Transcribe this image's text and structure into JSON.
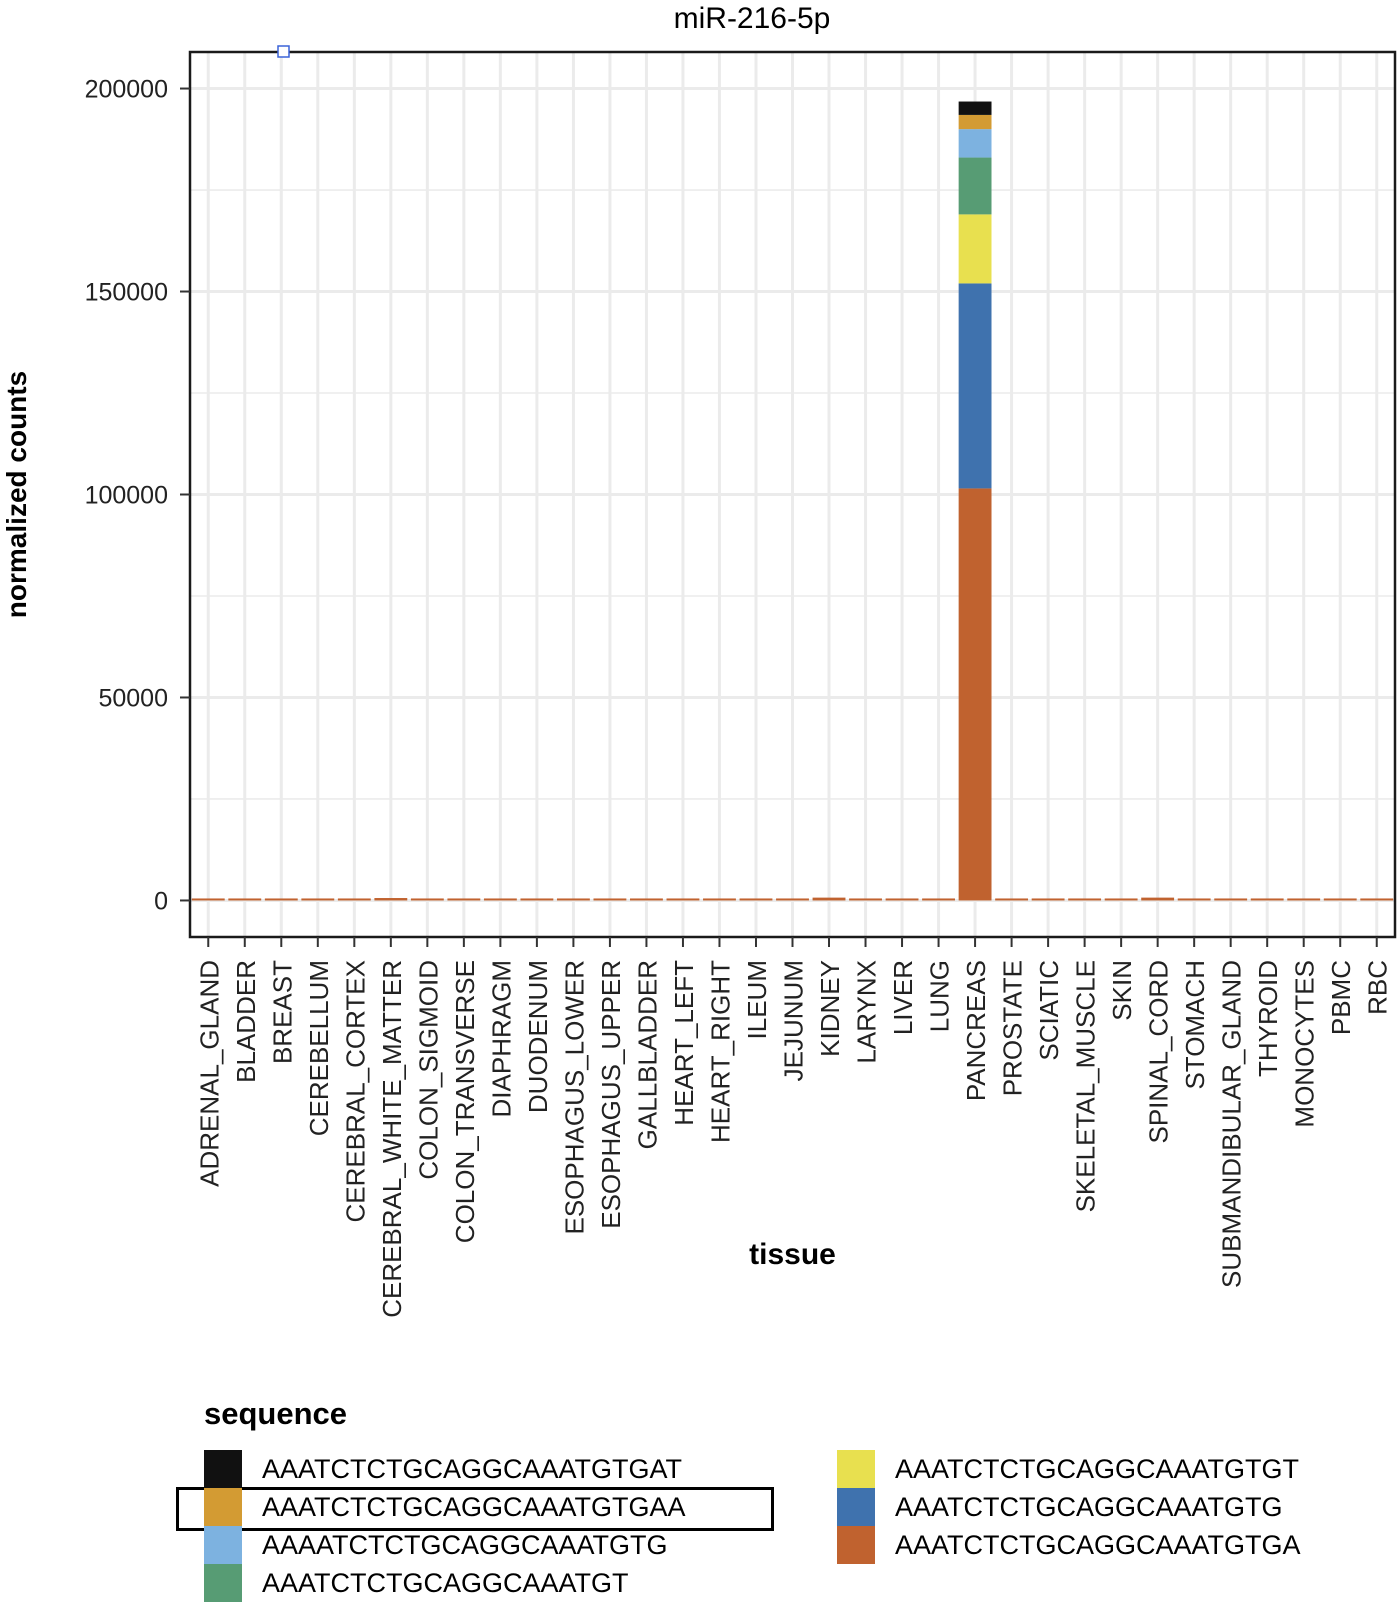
{
  "chart_data": {
    "type": "bar",
    "stacked": true,
    "title": "miR-216-5p",
    "xlabel": "tissue",
    "ylabel": "normalized counts",
    "ylim": [
      -9000,
      209000
    ],
    "yticks": [
      0,
      50000,
      100000,
      150000,
      200000
    ],
    "ytick_labels": [
      "0",
      "50000",
      "100000",
      "150000",
      "200000"
    ],
    "grid": true,
    "categories": [
      "ADRENAL_GLAND",
      "BLADDER",
      "BREAST",
      "CEREBELLUM",
      "CEREBRAL_CORTEX",
      "CEREBRAL_WHITE_MATTER",
      "COLON_SIGMOID",
      "COLON_TRANSVERSE",
      "DIAPHRAGM",
      "DUODENUM",
      "ESOPHAGUS_LOWER",
      "ESOPHAGUS_UPPER",
      "GALLBLADDER",
      "HEART_LEFT",
      "HEART_RIGHT",
      "ILEUM",
      "JEJUNUM",
      "KIDNEY",
      "LARYNX",
      "LIVER",
      "LUNG",
      "PANCREAS",
      "PROSTATE",
      "SCIATIC",
      "SKELETAL_MUSCLE",
      "SKIN",
      "SPINAL_CORD",
      "STOMACH",
      "SUBMANDIBULAR_GLAND",
      "THYROID",
      "MONOCYTES",
      "PBMC",
      "RBC"
    ],
    "legend_title": "sequence",
    "series": [
      {
        "name": "AAATCTCTGCAGGCAAATGTGA",
        "color": "#c0622f",
        "values": [
          300,
          250,
          300,
          300,
          250,
          600,
          300,
          450,
          250,
          350,
          250,
          300,
          350,
          300,
          250,
          250,
          350,
          700,
          250,
          450,
          250,
          101500,
          250,
          250,
          350,
          250,
          700,
          350,
          300,
          300,
          100,
          150,
          100
        ]
      },
      {
        "name": "AAATCTCTGCAGGCAAATGTG",
        "color": "#3f72ae",
        "values": [
          0,
          0,
          0,
          0,
          0,
          0,
          0,
          0,
          0,
          0,
          0,
          0,
          0,
          0,
          0,
          0,
          0,
          0,
          0,
          0,
          0,
          50500,
          0,
          0,
          0,
          0,
          0,
          0,
          0,
          0,
          0,
          0,
          0
        ]
      },
      {
        "name": "AAATCTCTGCAGGCAAATGTGT",
        "color": "#e8e04f",
        "values": [
          0,
          0,
          0,
          0,
          0,
          0,
          0,
          0,
          0,
          0,
          0,
          0,
          0,
          0,
          0,
          0,
          0,
          0,
          0,
          0,
          0,
          17000,
          0,
          0,
          0,
          0,
          0,
          0,
          0,
          0,
          0,
          0,
          0
        ]
      },
      {
        "name": "AAATCTCTGCAGGCAAATGT",
        "color": "#579c74",
        "values": [
          0,
          0,
          0,
          0,
          0,
          0,
          0,
          0,
          0,
          0,
          0,
          0,
          0,
          0,
          0,
          0,
          0,
          0,
          0,
          0,
          0,
          14000,
          0,
          0,
          0,
          0,
          0,
          0,
          0,
          0,
          0,
          0,
          0
        ]
      },
      {
        "name": "AAAATCTCTGCAGGCAAATGTG",
        "color": "#7db2e0",
        "values": [
          0,
          0,
          0,
          0,
          0,
          0,
          0,
          0,
          0,
          0,
          0,
          0,
          0,
          0,
          0,
          0,
          0,
          0,
          0,
          0,
          0,
          7000,
          0,
          0,
          0,
          0,
          0,
          0,
          0,
          0,
          0,
          0,
          0
        ]
      },
      {
        "name": "AAATCTCTGCAGGCAAATGTGAA",
        "color": "#d39b33",
        "values": [
          0,
          0,
          0,
          0,
          0,
          0,
          0,
          0,
          0,
          0,
          0,
          0,
          0,
          0,
          0,
          0,
          0,
          0,
          0,
          0,
          0,
          3500,
          0,
          0,
          0,
          0,
          0,
          0,
          0,
          0,
          0,
          0,
          0
        ]
      },
      {
        "name": "AAATCTCTGCAGGCAAATGTGAT",
        "color": "#111111",
        "values": [
          0,
          0,
          0,
          0,
          0,
          0,
          0,
          0,
          0,
          0,
          0,
          0,
          0,
          0,
          0,
          0,
          0,
          0,
          0,
          0,
          0,
          3300,
          0,
          0,
          0,
          0,
          0,
          0,
          0,
          0,
          0,
          0,
          0
        ]
      }
    ],
    "legend_order": [
      "AAATCTCTGCAGGCAAATGTGAT",
      "AAATCTCTGCAGGCAAATGTGAA",
      "AAAATCTCTGCAGGCAAATGTG",
      "AAATCTCTGCAGGCAAATGT",
      "AAATCTCTGCAGGCAAATGTGT",
      "AAATCTCTGCAGGCAAATGTG",
      "AAATCTCTGCAGGCAAATGTGA"
    ],
    "highlighted_legend_entry": "AAATCTCTGCAGGCAAATGTGAA"
  }
}
